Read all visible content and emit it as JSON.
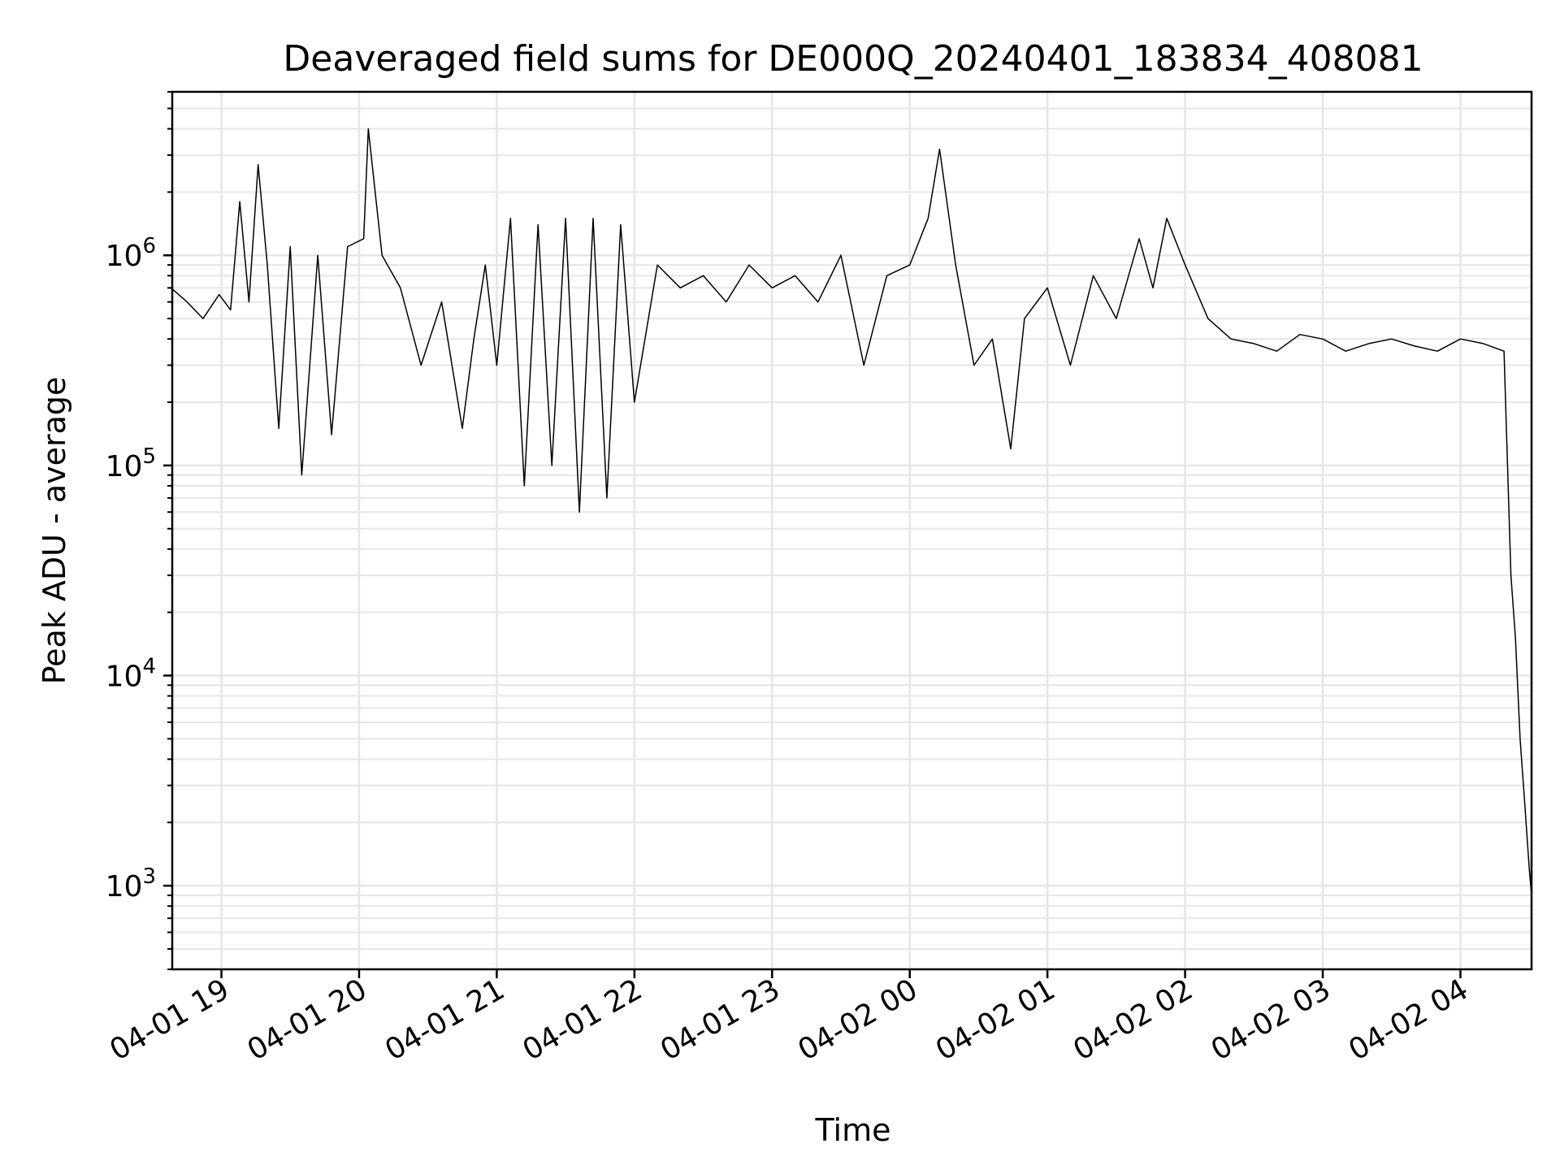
{
  "chart_data": {
    "type": "line",
    "title": "Deaveraged field sums for DE000Q_20240401_183834_408081",
    "xlabel": "Time",
    "ylabel": "Peak ADU - average",
    "yscale": "log",
    "ylim": [
      400,
      6000000
    ],
    "xlim": [
      "2024-04-01 18:38:34",
      "2024-04-02 04:31:00"
    ],
    "grid": true,
    "line_color": "#000000",
    "grid_color": "#e6e6e6",
    "x_ticks": [
      {
        "value": "2024-04-01 19:00:00",
        "label": "04-01 19"
      },
      {
        "value": "2024-04-01 20:00:00",
        "label": "04-01 20"
      },
      {
        "value": "2024-04-01 21:00:00",
        "label": "04-01 21"
      },
      {
        "value": "2024-04-01 22:00:00",
        "label": "04-01 22"
      },
      {
        "value": "2024-04-01 23:00:00",
        "label": "04-01 23"
      },
      {
        "value": "2024-04-02 00:00:00",
        "label": "04-02 00"
      },
      {
        "value": "2024-04-02 01:00:00",
        "label": "04-02 01"
      },
      {
        "value": "2024-04-02 02:00:00",
        "label": "04-02 02"
      },
      {
        "value": "2024-04-02 03:00:00",
        "label": "04-02 03"
      },
      {
        "value": "2024-04-02 04:00:00",
        "label": "04-02 04"
      }
    ],
    "y_ticks": [
      {
        "value": 1000,
        "base": "10",
        "exp": "3"
      },
      {
        "value": 10000,
        "base": "10",
        "exp": "4"
      },
      {
        "value": 100000,
        "base": "10",
        "exp": "5"
      },
      {
        "value": 1000000,
        "base": "10",
        "exp": "6"
      }
    ],
    "series": [
      {
        "x": [
          "2024-04-01 18:38",
          "2024-04-01 18:45",
          "2024-04-01 18:52",
          "2024-04-01 18:59",
          "2024-04-01 19:04",
          "2024-04-01 19:08",
          "2024-04-01 19:12",
          "2024-04-01 19:16",
          "2024-04-01 19:20",
          "2024-04-01 19:25",
          "2024-04-01 19:30",
          "2024-04-01 19:35",
          "2024-04-01 19:42",
          "2024-04-01 19:48",
          "2024-04-01 19:55",
          "2024-04-01 20:02",
          "2024-04-01 20:04",
          "2024-04-01 20:10",
          "2024-04-01 20:18",
          "2024-04-01 20:27",
          "2024-04-01 20:36",
          "2024-04-01 20:45",
          "2024-04-01 20:50",
          "2024-04-01 20:55",
          "2024-04-01 21:00",
          "2024-04-01 21:06",
          "2024-04-01 21:12",
          "2024-04-01 21:18",
          "2024-04-01 21:24",
          "2024-04-01 21:30",
          "2024-04-01 21:36",
          "2024-04-01 21:42",
          "2024-04-01 21:48",
          "2024-04-01 21:54",
          "2024-04-01 22:00",
          "2024-04-01 22:10",
          "2024-04-01 22:20",
          "2024-04-01 22:30",
          "2024-04-01 22:40",
          "2024-04-01 22:50",
          "2024-04-01 23:00",
          "2024-04-01 23:10",
          "2024-04-01 23:20",
          "2024-04-01 23:30",
          "2024-04-01 23:40",
          "2024-04-01 23:50",
          "2024-04-02 00:00",
          "2024-04-02 00:08",
          "2024-04-02 00:13",
          "2024-04-02 00:20",
          "2024-04-02 00:28",
          "2024-04-02 00:36",
          "2024-04-02 00:44",
          "2024-04-02 00:50",
          "2024-04-02 01:00",
          "2024-04-02 01:10",
          "2024-04-02 01:20",
          "2024-04-02 01:30",
          "2024-04-02 01:40",
          "2024-04-02 01:46",
          "2024-04-02 01:52",
          "2024-04-02 02:00",
          "2024-04-02 02:10",
          "2024-04-02 02:20",
          "2024-04-02 02:30",
          "2024-04-02 02:40",
          "2024-04-02 02:50",
          "2024-04-02 03:00",
          "2024-04-02 03:10",
          "2024-04-02 03:20",
          "2024-04-02 03:30",
          "2024-04-02 03:40",
          "2024-04-02 03:50",
          "2024-04-02 04:00",
          "2024-04-02 04:10",
          "2024-04-02 04:19",
          "2024-04-02 04:22",
          "2024-04-02 04:24",
          "2024-04-02 04:26",
          "2024-04-02 04:28",
          "2024-04-02 04:30",
          "2024-04-02 04:31"
        ],
        "y": [
          700000,
          600000,
          500000,
          650000,
          550000,
          1800000,
          600000,
          2700000,
          900000,
          150000,
          1100000,
          90000,
          1000000,
          140000,
          1100000,
          1200000,
          4000000,
          1000000,
          700000,
          300000,
          600000,
          150000,
          400000,
          900000,
          300000,
          1500000,
          80000,
          1400000,
          100000,
          1500000,
          60000,
          1500000,
          70000,
          1400000,
          200000,
          900000,
          700000,
          800000,
          600000,
          900000,
          700000,
          800000,
          600000,
          1000000,
          300000,
          800000,
          900000,
          1500000,
          3200000,
          900000,
          300000,
          400000,
          120000,
          500000,
          700000,
          300000,
          800000,
          500000,
          1200000,
          700000,
          1500000,
          900000,
          500000,
          400000,
          380000,
          350000,
          420000,
          400000,
          350000,
          380000,
          400000,
          370000,
          350000,
          400000,
          380000,
          350000,
          30000,
          15000,
          5000,
          2500,
          1200,
          900
        ]
      }
    ]
  }
}
